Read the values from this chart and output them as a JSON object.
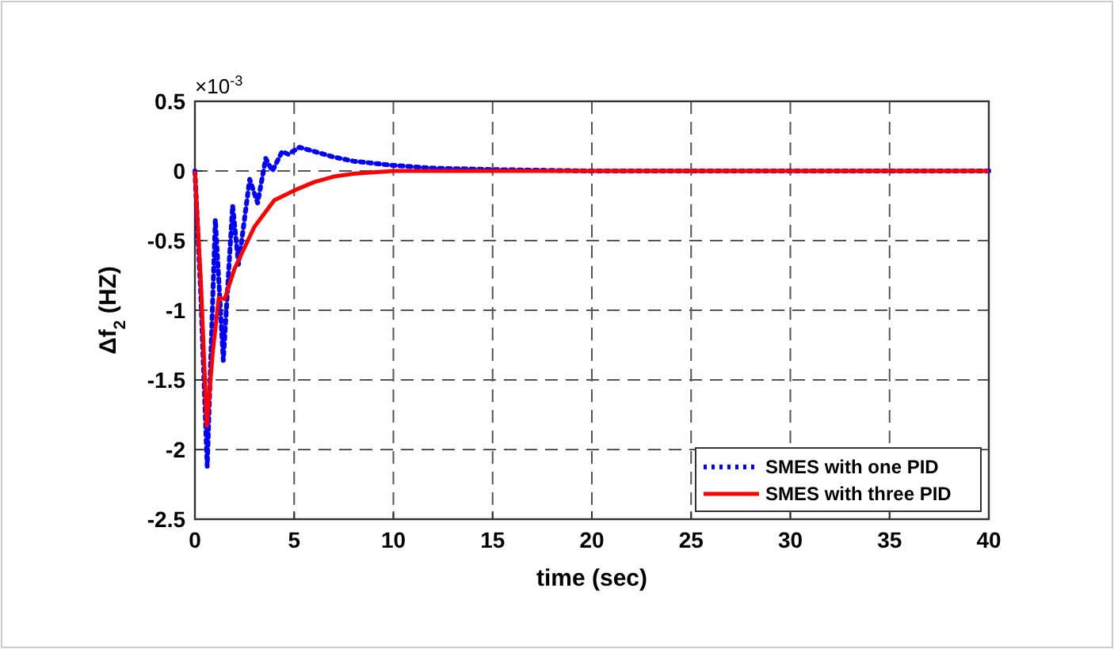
{
  "chart_data": {
    "type": "line",
    "xlabel": "time (sec)",
    "ylabel": "Δf$_{2}$ (HZ)",
    "annotations": [
      "×10$^{-3}$"
    ],
    "xlim": [
      0,
      40
    ],
    "xticks": [
      0,
      5,
      10,
      15,
      20,
      25,
      30,
      35,
      40
    ],
    "ylim": [
      -2.5,
      0.5
    ],
    "yticks": [
      -2.5,
      -2,
      -1.5,
      -1,
      -0.5,
      0,
      0.5
    ],
    "grid": true,
    "legend": "bottom right",
    "series": [
      {
        "name": "SMES with one PID",
        "color": "#0000ff",
        "line_style": "dotted",
        "x": [
          0,
          0.3,
          0.62,
          1.03,
          1.43,
          1.9,
          2.2,
          2.76,
          3.16,
          3.57,
          3.9,
          4.4,
          4.7,
          5.27,
          6,
          7,
          8,
          10,
          12,
          15,
          20,
          40
        ],
        "values": [
          0,
          -0.9,
          -2.12,
          -0.35,
          -1.36,
          -0.25,
          -0.67,
          -0.06,
          -0.23,
          0.09,
          0,
          0.14,
          0.12,
          0.17,
          0.14,
          0.1,
          0.07,
          0.04,
          0.02,
          0.01,
          0,
          0
        ]
      },
      {
        "name": "SMES with three PID",
        "color": "#ff0000",
        "line_style": "solid",
        "x": [
          0,
          0.3,
          0.6,
          0.9,
          1.2,
          1.5,
          2,
          3,
          4,
          5,
          6,
          7,
          8,
          10,
          40
        ],
        "values": [
          0,
          -0.8,
          -1.83,
          -1.3,
          -0.91,
          -0.92,
          -0.7,
          -0.4,
          -0.21,
          -0.14,
          -0.08,
          -0.04,
          -0.02,
          0,
          0
        ]
      }
    ]
  }
}
